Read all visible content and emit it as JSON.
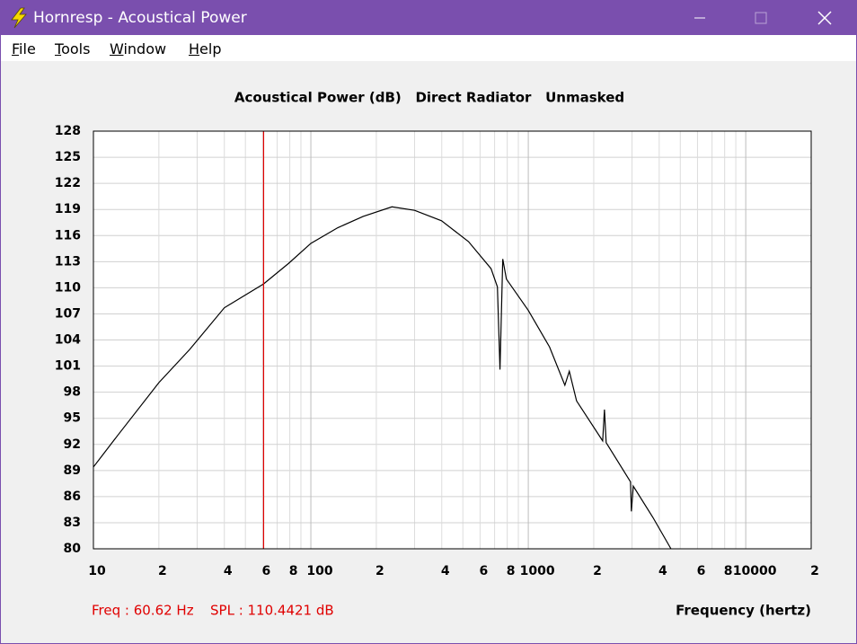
{
  "window": {
    "title": "Hornresp - Acoustical Power"
  },
  "menu": [
    "File",
    "Tools",
    "Window",
    "Help"
  ],
  "chart_data": {
    "type": "line",
    "title": "Acoustical Power (dB)   Direct Radiator   Unmasked",
    "x_label": "Frequency (hertz)",
    "log_x": true,
    "grid": true,
    "xlim": [
      10,
      20000
    ],
    "ylim": [
      80,
      128
    ],
    "yticks": [
      80,
      83,
      86,
      89,
      92,
      95,
      98,
      101,
      104,
      107,
      110,
      113,
      116,
      119,
      122,
      125,
      128
    ],
    "xticks": [
      10,
      {
        "value": 20,
        "label": "2"
      },
      {
        "value": 40,
        "label": "4"
      },
      {
        "value": 60,
        "label": "6"
      },
      {
        "value": 80,
        "label": "8"
      },
      100,
      {
        "value": 200,
        "label": "2"
      },
      {
        "value": 400,
        "label": "4"
      },
      {
        "value": 600,
        "label": "6"
      },
      {
        "value": 800,
        "label": "8"
      },
      1000,
      {
        "value": 2000,
        "label": "2"
      },
      {
        "value": 4000,
        "label": "4"
      },
      {
        "value": 6000,
        "label": "6"
      },
      {
        "value": 8000,
        "label": "8"
      },
      10000,
      {
        "value": 20000,
        "label": "2"
      }
    ],
    "xgrid": [
      30,
      50,
      70,
      90,
      300,
      500,
      700,
      900,
      3000,
      5000,
      7000,
      9000
    ],
    "series": [
      {
        "color": "#000000",
        "x": [
          10,
          12.9,
          20,
          27.7,
          40,
          60.62,
          79,
          100,
          133,
          174,
          236,
          300,
          399,
          531,
          674,
          721,
          741,
          763,
          793,
          1000,
          1252,
          1473,
          1544,
          1667,
          2198,
          2240,
          2281,
          2951,
          2979,
          3040,
          3743,
          4530
        ],
        "values": [
          89.4,
          93.0,
          99.1,
          102.9,
          107.7,
          110.4421,
          112.8,
          115.1,
          116.9,
          118.2,
          119.3,
          118.9,
          117.7,
          115.3,
          112.2,
          110.1,
          100.6,
          113.3,
          111.0,
          107.4,
          103.2,
          98.8,
          100.4,
          97.0,
          92.4,
          96.0,
          92.2,
          87.7,
          84.3,
          87.2,
          83.6,
          80.0
        ]
      }
    ],
    "cursor": {
      "x": 60.62,
      "y": 110.4421,
      "labels": [
        "Freq : 60.62 Hz",
        "SPL : 110.4421 dB"
      ]
    }
  }
}
